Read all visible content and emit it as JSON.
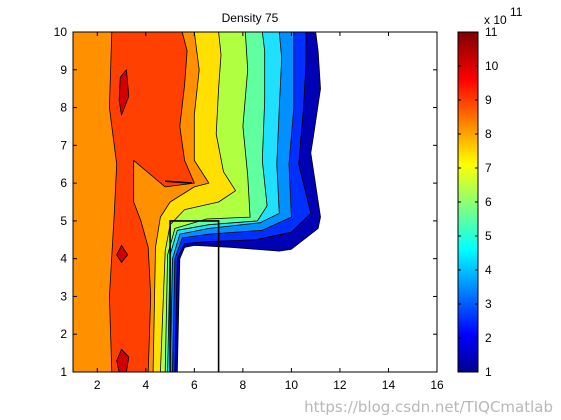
{
  "chart_data": {
    "type": "contour",
    "title": "Density 75",
    "xlabel": "",
    "ylabel": "",
    "xlim": [
      1,
      16
    ],
    "ylim": [
      1,
      10
    ],
    "xticks": [
      2,
      4,
      6,
      8,
      10,
      12,
      14,
      16
    ],
    "yticks": [
      1,
      2,
      3,
      4,
      5,
      6,
      7,
      8,
      9,
      10
    ],
    "grid": false,
    "colormap": "jet",
    "colorbar": {
      "min": 1,
      "max": 11,
      "ticks": [
        1,
        2,
        3,
        4,
        5,
        6,
        7,
        8,
        9,
        10,
        11
      ],
      "exponent_base": "x 10",
      "exponent_power": "11"
    },
    "levels": [
      1,
      2,
      3,
      4,
      5,
      6,
      7,
      8,
      9,
      10
    ],
    "level_colors": [
      "#0000b4",
      "#0030ff",
      "#0090ff",
      "#20e0ff",
      "#60ffa0",
      "#b0ff40",
      "#ffe000",
      "#ff9000",
      "#ff4000",
      "#d00000"
    ],
    "contour_bands": [
      {
        "level": 1,
        "points": [
          [
            1,
            1
          ],
          [
            5.3,
            1
          ],
          [
            5.4,
            4
          ],
          [
            5.6,
            4.3
          ],
          [
            6,
            4.35
          ],
          [
            7.5,
            4.3
          ],
          [
            9.5,
            4.2
          ],
          [
            10,
            4.25
          ],
          [
            11.1,
            4.8
          ],
          [
            11.2,
            5.1
          ],
          [
            10.8,
            6.8
          ],
          [
            10.9,
            7.2
          ],
          [
            11.2,
            8.5
          ],
          [
            11.1,
            9.5
          ],
          [
            11.0,
            10
          ],
          [
            1,
            10
          ]
        ]
      },
      {
        "level": 2,
        "points": [
          [
            1,
            1
          ],
          [
            5.2,
            1
          ],
          [
            5.3,
            4
          ],
          [
            5.6,
            4.4
          ],
          [
            6.5,
            4.45
          ],
          [
            8.5,
            4.5
          ],
          [
            10,
            4.7
          ],
          [
            10.8,
            5.2
          ],
          [
            10.3,
            6.5
          ],
          [
            10.5,
            8
          ],
          [
            10.6,
            9.2
          ],
          [
            10.6,
            10
          ],
          [
            1,
            10
          ]
        ]
      },
      {
        "level": 3,
        "points": [
          [
            1,
            1
          ],
          [
            5.1,
            1
          ],
          [
            5.2,
            4
          ],
          [
            5.5,
            4.55
          ],
          [
            6.6,
            4.65
          ],
          [
            8.8,
            4.75
          ],
          [
            10,
            5.1
          ],
          [
            9.9,
            6.5
          ],
          [
            10.1,
            8
          ],
          [
            10.1,
            9.2
          ],
          [
            10.1,
            10
          ],
          [
            1,
            10
          ]
        ]
      },
      {
        "level": 4,
        "points": [
          [
            1,
            1
          ],
          [
            5.0,
            1
          ],
          [
            5.1,
            4
          ],
          [
            5.4,
            4.65
          ],
          [
            6.6,
            4.8
          ],
          [
            8.7,
            4.95
          ],
          [
            9.5,
            5.2
          ],
          [
            9.4,
            6.5
          ],
          [
            9.5,
            8
          ],
          [
            9.6,
            9.3
          ],
          [
            9.5,
            10
          ],
          [
            1,
            10
          ]
        ]
      },
      {
        "level": 5,
        "points": [
          [
            1,
            1
          ],
          [
            4.9,
            1
          ],
          [
            5.0,
            4.1
          ],
          [
            5.3,
            4.75
          ],
          [
            6.6,
            4.9
          ],
          [
            8.6,
            5.0
          ],
          [
            9.0,
            5.4
          ],
          [
            8.8,
            6.6
          ],
          [
            8.9,
            8.2
          ],
          [
            8.9,
            9.5
          ],
          [
            8.8,
            10
          ],
          [
            1,
            10
          ]
        ]
      },
      {
        "level": 6,
        "points": [
          [
            1,
            1
          ],
          [
            4.8,
            1
          ],
          [
            4.9,
            4.1
          ],
          [
            5.2,
            4.8
          ],
          [
            6.5,
            5.05
          ],
          [
            8.3,
            5.1
          ],
          [
            8.2,
            6.2
          ],
          [
            8.0,
            7.5
          ],
          [
            8.2,
            9
          ],
          [
            8.1,
            10
          ],
          [
            1,
            10
          ]
        ]
      },
      {
        "level": 7,
        "points": [
          [
            1,
            1
          ],
          [
            4.6,
            1
          ],
          [
            4.8,
            4.2
          ],
          [
            5.0,
            4.9
          ],
          [
            5.6,
            5.3
          ],
          [
            7.0,
            5.5
          ],
          [
            7.7,
            5.8
          ],
          [
            7.2,
            6.3
          ],
          [
            6.9,
            7.3
          ],
          [
            7.0,
            8.5
          ],
          [
            7.1,
            9.4
          ],
          [
            7.0,
            10
          ],
          [
            1,
            10
          ]
        ]
      },
      {
        "level": 8,
        "points": [
          [
            1,
            1
          ],
          [
            4.3,
            1
          ],
          [
            4.4,
            4.3
          ],
          [
            4.6,
            5.1
          ],
          [
            5.0,
            5.5
          ],
          [
            6.0,
            5.9
          ],
          [
            6.6,
            6.0
          ],
          [
            6.0,
            6.6
          ],
          [
            6.0,
            7.8
          ],
          [
            6.2,
            9
          ],
          [
            6.0,
            10
          ],
          [
            1,
            10
          ]
        ]
      },
      {
        "level": 9,
        "points": [
          [
            2.6,
            1
          ],
          [
            4.1,
            1
          ],
          [
            4.2,
            3
          ],
          [
            4.1,
            4.3
          ],
          [
            3.8,
            5.0
          ],
          [
            3.5,
            5.5
          ],
          [
            3.5,
            6.6
          ],
          [
            4.8,
            5.9
          ],
          [
            6.0,
            6.0
          ],
          [
            5.6,
            6.6
          ],
          [
            5.4,
            7.5
          ],
          [
            5.6,
            8.6
          ],
          [
            5.7,
            9.5
          ],
          [
            5.5,
            10
          ],
          [
            2.6,
            10
          ],
          [
            2.5,
            8
          ],
          [
            2.8,
            6.5
          ],
          [
            2.7,
            5.2
          ],
          [
            2.5,
            3
          ]
        ]
      },
      {
        "level": 10,
        "points": [
          [
            2.9,
            1
          ],
          [
            3.2,
            1
          ],
          [
            3.3,
            1.4
          ],
          [
            3.0,
            1.6
          ],
          [
            2.8,
            1.3
          ]
        ]
      },
      {
        "level": 10,
        "points": [
          [
            3.0,
            3.9
          ],
          [
            3.25,
            4.1
          ],
          [
            3.0,
            4.35
          ],
          [
            2.8,
            4.1
          ]
        ]
      },
      {
        "level": 10,
        "points": [
          [
            3.0,
            7.8
          ],
          [
            3.3,
            8.3
          ],
          [
            3.2,
            9.0
          ],
          [
            2.95,
            8.8
          ],
          [
            2.9,
            8.2
          ]
        ]
      }
    ],
    "overlay_lines": [
      {
        "points": [
          [
            5.0,
            1
          ],
          [
            5.0,
            5.0
          ],
          [
            7.0,
            5.0
          ],
          [
            7.0,
            1
          ]
        ]
      },
      {
        "points": [
          [
            4.8,
            6.05
          ],
          [
            5.9,
            6.0
          ]
        ]
      }
    ]
  },
  "watermark": "https://blog.csdn.net/TIQCmatlab"
}
